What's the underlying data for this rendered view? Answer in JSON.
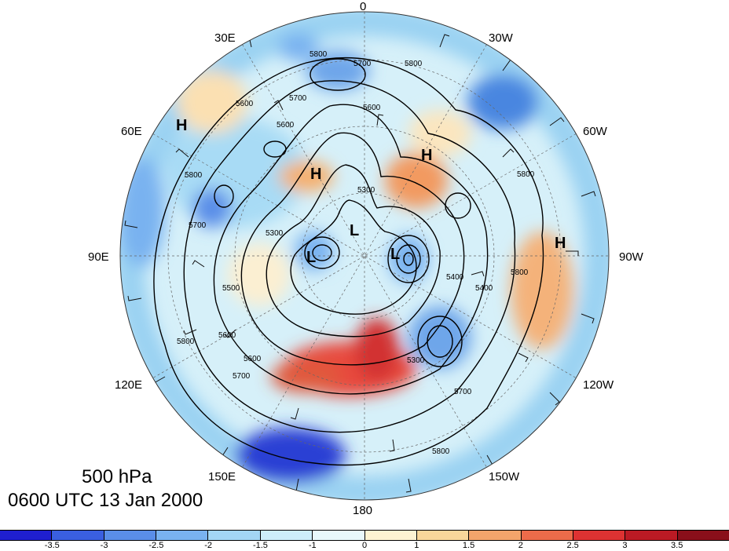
{
  "map": {
    "longitude_labels": [
      "0",
      "30W",
      "60W",
      "90W",
      "120W",
      "150W",
      "180",
      "150E",
      "120E",
      "90E",
      "60E",
      "30E"
    ],
    "highs": [
      "H",
      "H",
      "H",
      "H"
    ],
    "lows": [
      "L",
      "L",
      "L"
    ],
    "contour_labels": [
      "5800",
      "5700",
      "5600",
      "5300",
      "5500",
      "5400",
      "5800",
      "5700",
      "5600",
      "5800",
      "5700",
      "5800",
      "5600",
      "5600",
      "5800",
      "5600",
      "5300",
      "5400",
      "5300",
      "5700",
      "5800",
      "5800",
      "5700"
    ]
  },
  "title": {
    "level": "500 hPa",
    "time": "0600 UTC 13 Jan 2000"
  },
  "colorbar": {
    "labels": [
      "-3.5",
      "-3",
      "-2.5",
      "-2",
      "-1.5",
      "-1",
      "0",
      "1",
      "1.5",
      "2",
      "2.5",
      "3",
      "3.5"
    ],
    "colors": [
      "#1f1fd0",
      "#3a5fe0",
      "#5a8ee8",
      "#79b2f0",
      "#a3d6f5",
      "#cdeefa",
      "#e8f8fb",
      "#fdf3d2",
      "#f9d79a",
      "#f3a46b",
      "#ec6b4a",
      "#dd3232",
      "#bb1a24",
      "#8a0f1a"
    ]
  }
}
